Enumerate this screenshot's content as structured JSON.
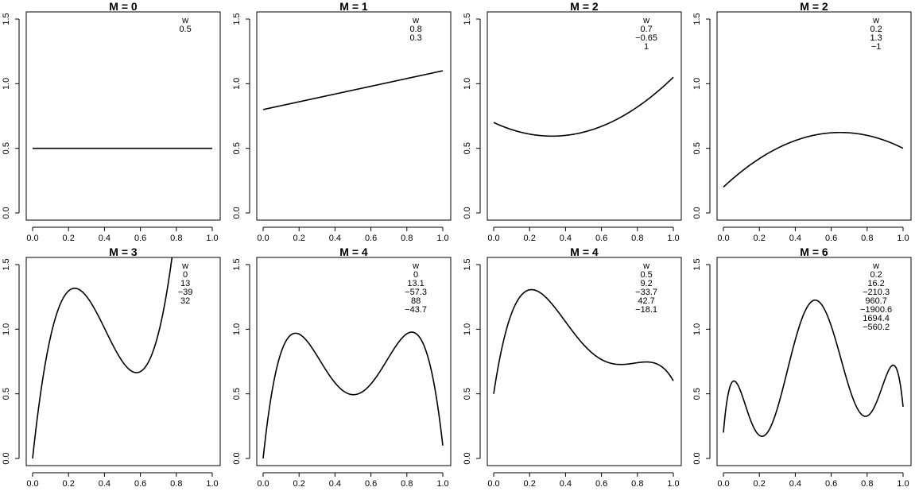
{
  "chart_data": [
    {
      "type": "line",
      "title": "M =  0",
      "weights_header": "w",
      "weights": [
        "0.5"
      ],
      "coefficients": [
        0.5
      ],
      "x_ticks": [
        "0.0",
        "0.2",
        "0.4",
        "0.6",
        "0.8",
        "1.0"
      ],
      "y_ticks": [
        "0.0",
        "0.5",
        "1.0",
        "1.5"
      ],
      "xlim": [
        0,
        1
      ],
      "ylim": [
        0,
        1.5
      ]
    },
    {
      "type": "line",
      "title": "M =  1",
      "weights_header": "w",
      "weights": [
        "0.8",
        "0.3"
      ],
      "coefficients": [
        0.8,
        0.3
      ],
      "x_ticks": [
        "0.0",
        "0.2",
        "0.4",
        "0.6",
        "0.8",
        "1.0"
      ],
      "y_ticks": [
        "0.0",
        "0.5",
        "1.0",
        "1.5"
      ],
      "xlim": [
        0,
        1
      ],
      "ylim": [
        0,
        1.5
      ]
    },
    {
      "type": "line",
      "title": "M =  2",
      "weights_header": "w",
      "weights": [
        "0.7",
        "−0.65",
        "1"
      ],
      "coefficients": [
        0.7,
        -0.65,
        1
      ],
      "x_ticks": [
        "0.0",
        "0.2",
        "0.4",
        "0.6",
        "0.8",
        "1.0"
      ],
      "y_ticks": [
        "0.0",
        "0.5",
        "1.0",
        "1.5"
      ],
      "xlim": [
        0,
        1
      ],
      "ylim": [
        0,
        1.5
      ]
    },
    {
      "type": "line",
      "title": "M =  2",
      "weights_header": "w",
      "weights": [
        "0.2",
        "1.3",
        "−1"
      ],
      "coefficients": [
        0.2,
        1.3,
        -1
      ],
      "x_ticks": [
        "0.0",
        "0.2",
        "0.4",
        "0.6",
        "0.8",
        "1.0"
      ],
      "y_ticks": [
        "0.0",
        "0.5",
        "1.0",
        "1.5"
      ],
      "xlim": [
        0,
        1
      ],
      "ylim": [
        0,
        1.5
      ]
    },
    {
      "type": "line",
      "title": "M =  3",
      "weights_header": "w",
      "weights": [
        "0",
        "13",
        "−39",
        "32"
      ],
      "coefficients": [
        0,
        13,
        -39,
        32
      ],
      "x_ticks": [
        "0.0",
        "0.2",
        "0.4",
        "0.6",
        "0.8",
        "1.0"
      ],
      "y_ticks": [
        "0.0",
        "0.5",
        "1.0",
        "1.5"
      ],
      "xlim": [
        0,
        1
      ],
      "ylim": [
        0,
        1.5
      ]
    },
    {
      "type": "line",
      "title": "M =  4",
      "weights_header": "w",
      "weights": [
        "0",
        "13.1",
        "−57.3",
        "88",
        "−43.7"
      ],
      "coefficients": [
        0,
        13.1,
        -57.3,
        88,
        -43.7
      ],
      "x_ticks": [
        "0.0",
        "0.2",
        "0.4",
        "0.6",
        "0.8",
        "1.0"
      ],
      "y_ticks": [
        "0.0",
        "0.5",
        "1.0",
        "1.5"
      ],
      "xlim": [
        0,
        1
      ],
      "ylim": [
        0,
        1.5
      ]
    },
    {
      "type": "line",
      "title": "M =  4",
      "weights_header": "w",
      "weights": [
        "0.5",
        "9.2",
        "−33.7",
        "42.7",
        "−18.1"
      ],
      "coefficients": [
        0.5,
        9.2,
        -33.7,
        42.7,
        -18.1
      ],
      "x_ticks": [
        "0.0",
        "0.2",
        "0.4",
        "0.6",
        "0.8",
        "1.0"
      ],
      "y_ticks": [
        "0.0",
        "0.5",
        "1.0",
        "1.5"
      ],
      "xlim": [
        0,
        1
      ],
      "ylim": [
        0,
        1.5
      ]
    },
    {
      "type": "line",
      "title": "M =  6",
      "weights_header": "w",
      "weights": [
        "0.2",
        "16.2",
        "−210.3",
        "960.7",
        "−1900.6",
        "1694.4",
        "−560.2"
      ],
      "coefficients": [
        0.2,
        16.2,
        -210.3,
        960.7,
        -1900.6,
        1694.4,
        -560.2
      ],
      "x_ticks": [
        "0.0",
        "0.2",
        "0.4",
        "0.6",
        "0.8",
        "1.0"
      ],
      "y_ticks": [
        "0.0",
        "0.5",
        "1.0",
        "1.5"
      ],
      "xlim": [
        0,
        1
      ],
      "ylim": [
        0,
        1.5
      ]
    }
  ]
}
